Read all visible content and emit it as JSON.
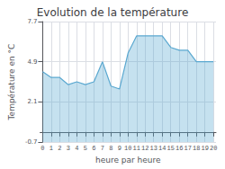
{
  "chart_data": {
    "type": "area",
    "title": "Evolution de la température",
    "xlabel": "heure par heure",
    "ylabel": "Température en °C",
    "x": [
      0,
      1,
      2,
      3,
      4,
      5,
      6,
      7,
      8,
      9,
      10,
      11,
      12,
      13,
      14,
      15,
      16,
      17,
      18,
      19,
      20
    ],
    "values": [
      4.2,
      3.8,
      3.8,
      3.3,
      3.5,
      3.3,
      3.5,
      4.9,
      3.2,
      3.0,
      5.5,
      6.7,
      6.7,
      6.7,
      6.7,
      5.9,
      5.7,
      5.7,
      4.9,
      4.9,
      4.9
    ],
    "color": "#5aa8d0",
    "xlim": [
      -0.3,
      20.3
    ],
    "xticks": [
      0,
      1,
      2,
      3,
      4,
      5,
      6,
      7,
      8,
      9,
      10,
      11,
      12,
      13,
      14,
      15,
      16,
      17,
      18,
      19,
      20
    ],
    "ylim": [
      -0.7,
      7.7
    ],
    "yticks": [
      -0.7,
      2.1,
      4.9,
      7.7
    ],
    "grid": true
  }
}
